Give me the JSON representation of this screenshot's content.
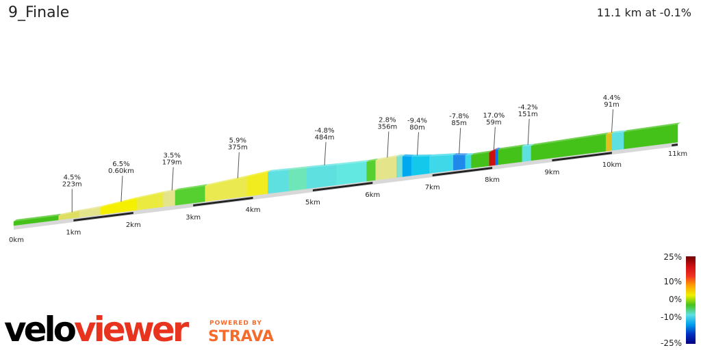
{
  "header": {
    "title": "9_Finale",
    "summary": "11.1 km at -0.1%"
  },
  "brand": {
    "velo": "velo",
    "viewer": "viewer",
    "powered": "POWERED BY",
    "strava": "STRAVA"
  },
  "chart_data": {
    "type": "area",
    "title": "9_Finale",
    "total_distance_km": 11.1,
    "average_gradient_pct": -0.1,
    "x_ticks": [
      "0km",
      "1km",
      "2km",
      "3km",
      "4km",
      "5km",
      "6km",
      "7km",
      "8km",
      "9km",
      "10km",
      "11km"
    ],
    "segments": [
      {
        "dist_km": 0.0,
        "grad": 0,
        "color": "#44c21a"
      },
      {
        "dist_km": 0.75,
        "grad": 4.5,
        "color": "#dede60"
      },
      {
        "dist_km": 1.1,
        "grad": 3.5,
        "color": "#e4e48a"
      },
      {
        "dist_km": 1.45,
        "grad": 6.5,
        "color": "#f4f000"
      },
      {
        "dist_km": 2.05,
        "grad": 5.0,
        "color": "#eaea40"
      },
      {
        "dist_km": 2.5,
        "grad": 3.5,
        "color": "#e4e48a"
      },
      {
        "dist_km": 2.7,
        "grad": 1.5,
        "color": "#55d030"
      },
      {
        "dist_km": 3.2,
        "grad": 5.0,
        "color": "#eaea50"
      },
      {
        "dist_km": 3.9,
        "grad": 5.9,
        "color": "#f0ec20"
      },
      {
        "dist_km": 4.25,
        "grad": -1.5,
        "color": "#5ee0e0"
      },
      {
        "dist_km": 4.6,
        "grad": -1.0,
        "color": "#6ee6b8"
      },
      {
        "dist_km": 4.9,
        "grad": -1.5,
        "color": "#5ee0e0"
      },
      {
        "dist_km": 5.4,
        "grad": -1.0,
        "color": "#62e8e0"
      },
      {
        "dist_km": 5.9,
        "grad": 2.0,
        "color": "#55d030"
      },
      {
        "dist_km": 6.05,
        "grad": 2.8,
        "color": "#e4e48a"
      },
      {
        "dist_km": 6.4,
        "grad": -3.0,
        "color": "#7ee0d0"
      },
      {
        "dist_km": 6.5,
        "grad": -9.4,
        "color": "#00a8f0"
      },
      {
        "dist_km": 6.65,
        "grad": -6.0,
        "color": "#14c8ec"
      },
      {
        "dist_km": 6.95,
        "grad": -4.0,
        "color": "#3ed8e8"
      },
      {
        "dist_km": 7.35,
        "grad": -7.8,
        "color": "#2088ea"
      },
      {
        "dist_km": 7.55,
        "grad": -4.0,
        "color": "#3ed8e8"
      },
      {
        "dist_km": 7.65,
        "grad": 1.5,
        "color": "#44c21a"
      },
      {
        "dist_km": 7.95,
        "grad": 17.0,
        "color": "#cc1010"
      },
      {
        "dist_km": 8.05,
        "grad": -8.0,
        "color": "#1070e8"
      },
      {
        "dist_km": 8.1,
        "grad": 1.0,
        "color": "#44c21a"
      },
      {
        "dist_km": 8.5,
        "grad": -4.2,
        "color": "#5ee0e0"
      },
      {
        "dist_km": 8.65,
        "grad": 1.5,
        "color": "#44c21a"
      },
      {
        "dist_km": 9.9,
        "grad": 4.4,
        "color": "#e0c020"
      },
      {
        "dist_km": 10.0,
        "grad": -2.0,
        "color": "#5ee0e0"
      },
      {
        "dist_km": 10.2,
        "grad": 1.0,
        "color": "#44c21a"
      },
      {
        "dist_km": 11.1,
        "grad": 0,
        "color": "#44c21a"
      }
    ],
    "annotations": [
      {
        "km": 0.93,
        "grad": "4.5%",
        "len": "223m"
      },
      {
        "km": 1.75,
        "grad": "6.5%",
        "len": "0.60km"
      },
      {
        "km": 2.6,
        "grad": "3.5%",
        "len": "179m"
      },
      {
        "km": 3.7,
        "grad": "5.9%",
        "len": "375m"
      },
      {
        "km": 5.15,
        "grad": "-4.8%",
        "len": "484m"
      },
      {
        "km": 6.2,
        "grad": "2.8%",
        "len": "356m"
      },
      {
        "km": 6.7,
        "grad": "-9.4%",
        "len": "80m"
      },
      {
        "km": 7.4,
        "grad": "-7.8%",
        "len": "85m"
      },
      {
        "km": 7.98,
        "grad": "17.0%",
        "len": "59m"
      },
      {
        "km": 8.55,
        "grad": "-4.2%",
        "len": "151m"
      },
      {
        "km": 9.95,
        "grad": "4.4%",
        "len": "91m"
      }
    ],
    "legend": {
      "stops": [
        "25%",
        "10%",
        "0%",
        "-10%",
        "-25%"
      ],
      "colors": [
        "#700000",
        "#cc1010",
        "#f03020",
        "#ffa000",
        "#f0f000",
        "#44c21a",
        "#60e0e0",
        "#00a0f0",
        "#0030c0",
        "#000080"
      ]
    }
  }
}
